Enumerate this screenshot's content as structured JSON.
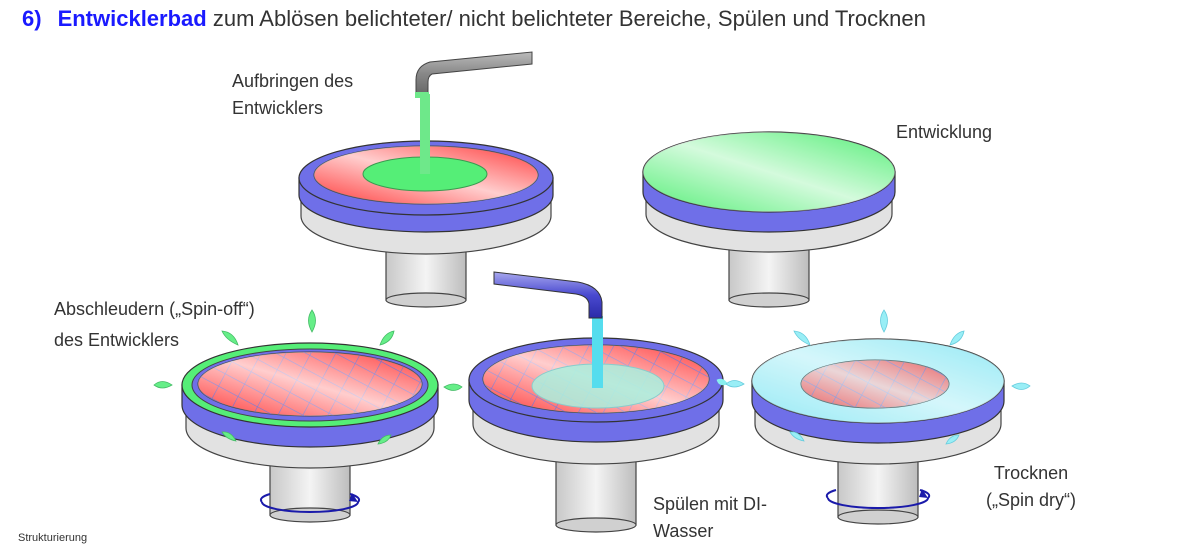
{
  "title": {
    "number": "6)",
    "keyword": "Entwicklerbad",
    "rest": "zum Ablösen belichteter/ nicht belichteter Bereiche, Spülen und Trocknen"
  },
  "steps": {
    "apply": {
      "line1": "Aufbringen des",
      "line2": "Entwicklers"
    },
    "develop": {
      "label": "Entwicklung"
    },
    "spin_off": {
      "line1": "Abschleudern („Spin-off“)",
      "line2": "des Entwicklers"
    },
    "rinse": {
      "line1": "Spülen mit DI-",
      "line2": "Wasser"
    },
    "dry": {
      "line1": "Trocknen",
      "line2": "(„Spin dry“)"
    }
  },
  "footer": "Strukturierung",
  "colors": {
    "title_accent": "#1a1aff",
    "resist_red": "#ff3b3b",
    "developer_green": "#55ee77",
    "chuck_blue": "#6f6fe8",
    "water_cyan": "#66ddee",
    "pedestal_gray": "#dcdcdc"
  }
}
